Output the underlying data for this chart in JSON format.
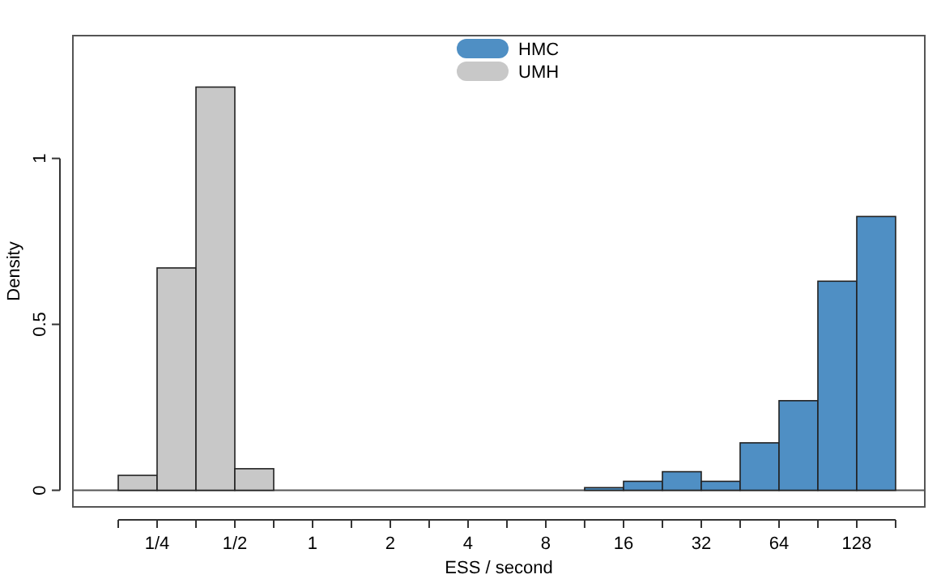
{
  "chart_data": {
    "type": "histogram",
    "xlabel": "ESS / second",
    "ylabel": "Density",
    "log": "x",
    "grid": false,
    "legend": "top",
    "xlim": [
      0.118,
      234.8
    ],
    "ylim": [
      -0.05,
      1.37
    ],
    "xticks": [
      {
        "value": 0.1768,
        "label": null
      },
      {
        "value": 0.25,
        "label": "1/4"
      },
      {
        "value": 0.3536,
        "label": null
      },
      {
        "value": 0.5,
        "label": "1/2"
      },
      {
        "value": 0.7071,
        "label": null
      },
      1,
      {
        "value": 1.414,
        "label": null
      },
      2,
      {
        "value": 2.828,
        "label": null
      },
      4,
      {
        "value": 5.657,
        "label": null
      },
      8,
      {
        "value": 11.31,
        "label": null
      },
      16,
      {
        "value": 22.63,
        "label": null
      },
      32,
      {
        "value": 45.25,
        "label": null
      },
      64,
      {
        "value": 90.51,
        "label": null
      },
      128,
      {
        "value": 181.0,
        "label": null
      }
    ],
    "yticks": [
      0,
      0.5,
      1
    ],
    "ref_lines": [
      {
        "axis": "y",
        "value": 0,
        "color": "#555555"
      }
    ],
    "bins": [
      0.1768,
      0.25,
      0.3536,
      0.5,
      0.7071,
      1,
      1.414,
      2,
      2.828,
      4,
      5.657,
      8,
      11.31,
      16,
      22.63,
      32,
      45.25,
      64,
      90.51,
      128,
      181.0
    ],
    "series": [
      {
        "name": "HMC",
        "color": "#4f8fc4",
        "values": [
          0,
          0,
          0,
          0,
          0,
          0,
          0,
          0,
          0,
          0,
          0,
          0,
          0.008,
          0.027,
          0.056,
          0.027,
          0.143,
          0.27,
          0.63,
          0.825
        ]
      },
      {
        "name": "UMH",
        "color": "#c8c8c8",
        "values": [
          0.045,
          0.67,
          1.215,
          0.065,
          0,
          0,
          0,
          0,
          0,
          0,
          0,
          0,
          0,
          0,
          0,
          0,
          0,
          0,
          0,
          0
        ]
      }
    ]
  }
}
